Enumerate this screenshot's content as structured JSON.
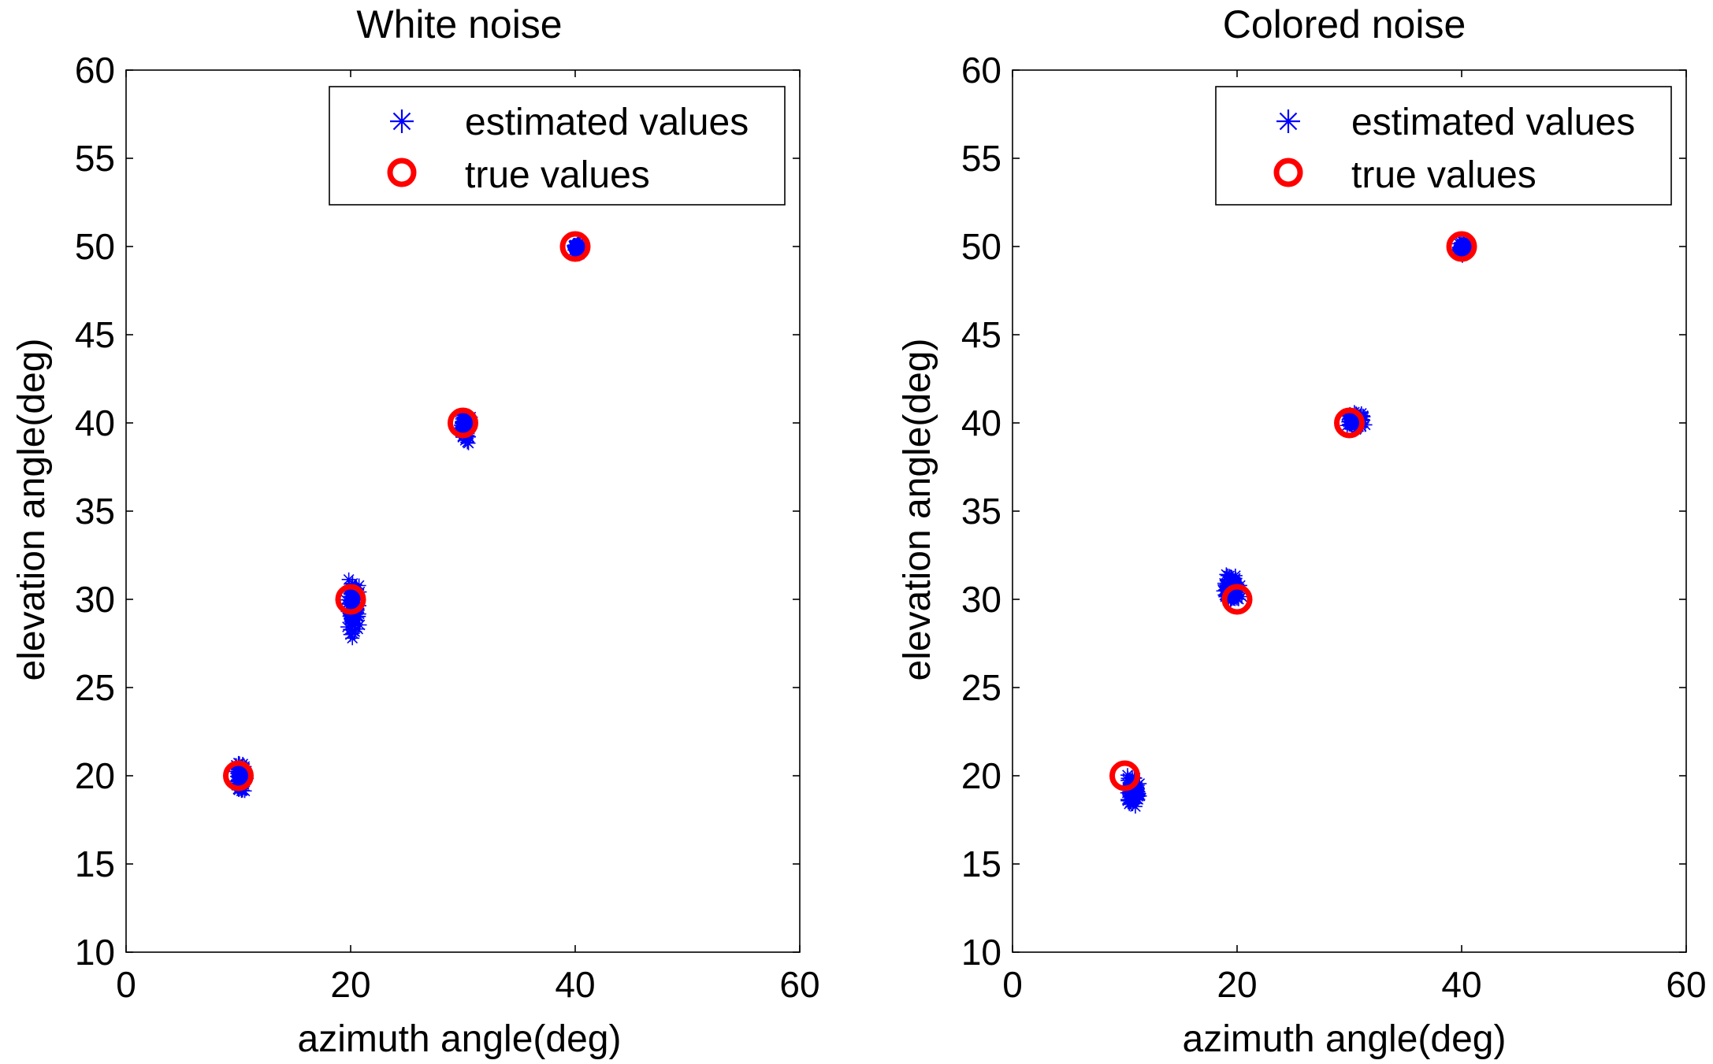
{
  "chart_data": [
    {
      "type": "scatter",
      "title": "White noise",
      "xlabel": "azimuth angle(deg)",
      "ylabel": "elevation angle(deg)",
      "xlim": [
        0,
        60
      ],
      "ylim": [
        10,
        60
      ],
      "xticks": [
        "0",
        "20",
        "40",
        "60"
      ],
      "yticks": [
        "10",
        "15",
        "20",
        "25",
        "30",
        "35",
        "40",
        "45",
        "50",
        "55",
        "60"
      ],
      "legend_position": "top-right",
      "series": [
        {
          "name": "estimated values",
          "marker": "asterisk",
          "color": "#0000ff",
          "clusters": [
            {
              "center": [
                10.2,
                19.9
              ],
              "spread": [
                0.6,
                1.1
              ]
            },
            {
              "center": [
                20.2,
                29.6
              ],
              "spread": [
                0.8,
                1.9
              ]
            },
            {
              "center": [
                30.2,
                39.8
              ],
              "spread": [
                0.6,
                1.1
              ]
            },
            {
              "center": [
                40.2,
                49.9
              ],
              "spread": [
                0.4,
                0.4
              ]
            }
          ]
        },
        {
          "name": "true values",
          "marker": "circle",
          "color": "#ff0000",
          "points": [
            [
              10,
              20
            ],
            [
              20,
              30
            ],
            [
              30,
              40
            ],
            [
              40,
              50
            ]
          ]
        }
      ]
    },
    {
      "type": "scatter",
      "title": "Colored noise",
      "xlabel": "azimuth angle(deg)",
      "ylabel": "elevation angle(deg)",
      "xlim": [
        0,
        60
      ],
      "ylim": [
        10,
        60
      ],
      "xticks": [
        "0",
        "20",
        "40",
        "60"
      ],
      "yticks": [
        "10",
        "15",
        "20",
        "25",
        "30",
        "35",
        "40",
        "45",
        "50",
        "55",
        "60"
      ],
      "legend_position": "top-right",
      "series": [
        {
          "name": "estimated values",
          "marker": "asterisk",
          "color": "#0000ff",
          "clusters": [
            {
              "center": [
                10.7,
                19.0
              ],
              "spread": [
                0.9,
                1.2
              ]
            },
            {
              "center": [
                19.5,
                30.6
              ],
              "spread": [
                1.1,
                1.1
              ]
            },
            {
              "center": [
                30.6,
                40.1
              ],
              "spread": [
                1.0,
                0.6
              ]
            },
            {
              "center": [
                40.1,
                49.9
              ],
              "spread": [
                0.5,
                0.5
              ]
            }
          ]
        },
        {
          "name": "true values",
          "marker": "circle",
          "color": "#ff0000",
          "points": [
            [
              10,
              20
            ],
            [
              20,
              30
            ],
            [
              30,
              40
            ],
            [
              40,
              50
            ]
          ]
        }
      ]
    }
  ]
}
